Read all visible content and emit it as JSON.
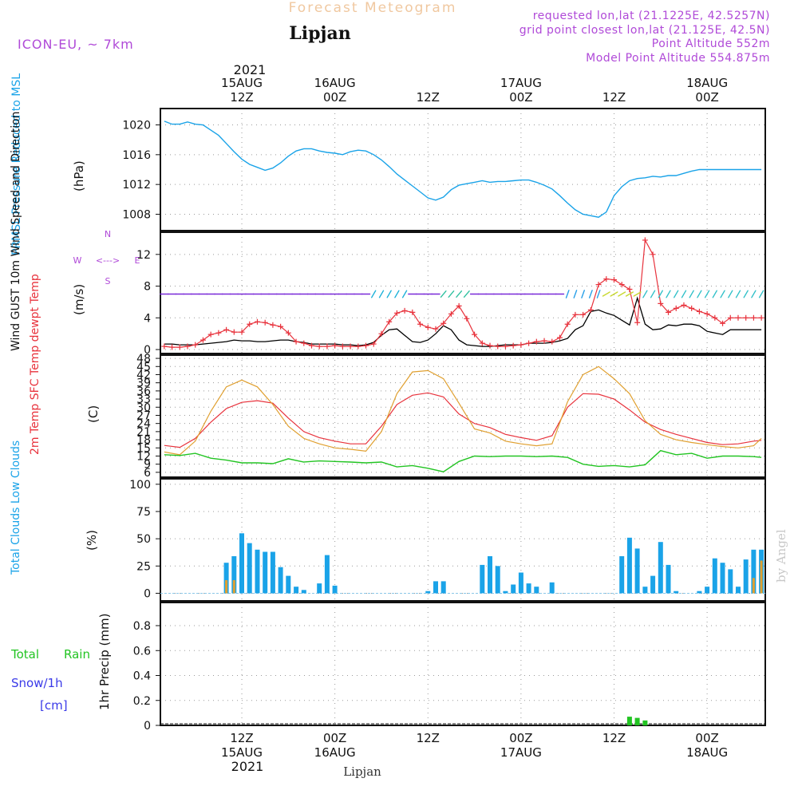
{
  "header": {
    "product": "Forecast Meteogram",
    "station": "Lipjan",
    "model": "ICON-EU, ~ 7km",
    "requested": "requested lon,lat (21.1225E, 42.5257N)",
    "gridpoint": "grid point closest lon,lat (21.125E, 42.5N)",
    "point_alt": "Point Altitude 552m",
    "model_alt": "Model Point Altitude 554.875m",
    "watermark": "by Angel",
    "footer_station": "Lipjan"
  },
  "time_axis": {
    "year": "2021",
    "ticks": [
      {
        "hour": 12,
        "line1": "",
        "line2": "15AUG",
        "line3": "12Z"
      },
      {
        "hour": 24,
        "line1": "",
        "line2": "16AUG",
        "line3": "00Z"
      },
      {
        "hour": 36,
        "line1": "",
        "line2": "",
        "line3": "12Z"
      },
      {
        "hour": 48,
        "line1": "",
        "line2": "17AUG",
        "line3": "00Z"
      },
      {
        "hour": 60,
        "line1": "",
        "line2": "",
        "line3": "12Z"
      },
      {
        "hour": 72,
        "line1": "",
        "line2": "18AUG",
        "line3": "00Z"
      }
    ],
    "bottom_ticks": [
      {
        "hour": 12,
        "hh": "12Z",
        "day": "15AUG"
      },
      {
        "hour": 24,
        "hh": "00Z",
        "day": "16AUG"
      },
      {
        "hour": 36,
        "hh": "12Z",
        "day": ""
      },
      {
        "hour": 48,
        "hh": "00Z",
        "day": "17AUG"
      },
      {
        "hour": 60,
        "hh": "12Z",
        "day": ""
      },
      {
        "hour": 72,
        "hh": "00Z",
        "day": "18AUG"
      }
    ],
    "range": [
      1.5,
      79.5
    ]
  },
  "colors": {
    "prmsl": "#1aa3e8",
    "gust": "#e8323c",
    "wind": "#000000",
    "t2m": "#e8323c",
    "tsfc": "#e0a030",
    "td": "#22c422",
    "total_cloud": "#1aa3e8",
    "low_cloud": "#e0a030",
    "rain": "#22c422",
    "snow": "#3a3ae8",
    "purple": "#b04ad8",
    "title_faint": "#f0c8a0"
  },
  "chart_data": [
    {
      "type": "line",
      "panel": "pressure",
      "ylabel": "PRMSL Pressure Reduced to MSL",
      "unit": "(hPa)",
      "yticks": [
        1008,
        1012,
        1016,
        1020
      ],
      "ylim": [
        1005.8,
        1022.2
      ],
      "series": [
        {
          "name": "PRMSL",
          "x": [
            2,
            3,
            4,
            5,
            6,
            7,
            8,
            9,
            10,
            11,
            12,
            13,
            14,
            15,
            16,
            17,
            18,
            19,
            20,
            21,
            22,
            23,
            24,
            25,
            26,
            27,
            28,
            29,
            30,
            31,
            32,
            33,
            34,
            35,
            36,
            37,
            38,
            39,
            40,
            41,
            42,
            43,
            44,
            45,
            46,
            47,
            48,
            49,
            50,
            51,
            52,
            53,
            54,
            55,
            56,
            57,
            58,
            59,
            60,
            61,
            62,
            63,
            64,
            65,
            66,
            67,
            68,
            69,
            70,
            71,
            72,
            73,
            74,
            75,
            76,
            77,
            78,
            79
          ],
          "values": [
            1020.5,
            1020.1,
            1020.1,
            1020.4,
            1020.1,
            1020.0,
            1019.3,
            1018.6,
            1017.5,
            1016.4,
            1015.4,
            1014.7,
            1014.3,
            1013.9,
            1014.2,
            1014.9,
            1015.8,
            1016.5,
            1016.8,
            1016.8,
            1016.5,
            1016.3,
            1016.2,
            1016.0,
            1016.4,
            1016.6,
            1016.5,
            1016.0,
            1015.3,
            1014.4,
            1013.4,
            1012.6,
            1011.8,
            1011.0,
            1010.2,
            1009.9,
            1010.3,
            1011.3,
            1011.9,
            1012.1,
            1012.3,
            1012.5,
            1012.3,
            1012.4,
            1012.4,
            1012.5,
            1012.6,
            1012.6,
            1012.3,
            1011.9,
            1011.4,
            1010.5,
            1009.5,
            1008.6,
            1008.0,
            1007.8,
            1007.6,
            1008.3,
            1010.5,
            1011.7,
            1012.5,
            1012.8,
            1012.9,
            1013.1,
            1013.0,
            1013.2,
            1013.2,
            1013.5,
            1013.8,
            1014.0,
            1014.0,
            1014.0,
            1014.0,
            1014.0,
            1014.0,
            1014.0,
            1014.0,
            1014.0
          ]
        }
      ]
    },
    {
      "type": "line",
      "panel": "wind",
      "ylabel": "Wind GUST 10m Wind Speed and Direction",
      "unit": "(m/s)",
      "yticks": [
        0,
        4,
        8,
        12
      ],
      "ylim": [
        -0.5,
        14.8
      ],
      "compass": {
        "n": "N",
        "s": "S",
        "w": "W",
        "e": "E",
        "cross": "<--->"
      },
      "series": [
        {
          "name": "Wind GUST",
          "x": [
            2,
            3,
            4,
            5,
            6,
            7,
            8,
            9,
            10,
            11,
            12,
            13,
            14,
            15,
            16,
            17,
            18,
            19,
            20,
            21,
            22,
            23,
            24,
            25,
            26,
            27,
            28,
            29,
            30,
            31,
            32,
            33,
            34,
            35,
            36,
            37,
            38,
            39,
            40,
            41,
            42,
            43,
            44,
            45,
            46,
            47,
            48,
            49,
            50,
            51,
            52,
            53,
            54,
            55,
            56,
            57,
            58,
            59,
            60,
            61,
            62,
            63,
            64,
            65,
            66,
            67,
            68,
            69,
            70,
            71,
            72,
            73,
            74,
            75,
            76,
            77,
            78,
            79
          ],
          "values": [
            0.4,
            0.3,
            0.3,
            0.4,
            0.6,
            1.2,
            1.9,
            2.1,
            2.5,
            2.2,
            2.2,
            3.2,
            3.5,
            3.4,
            3.1,
            2.9,
            2.1,
            1.0,
            0.8,
            0.5,
            0.4,
            0.4,
            0.5,
            0.4,
            0.4,
            0.4,
            0.5,
            0.7,
            2.0,
            3.5,
            4.6,
            4.9,
            4.7,
            3.2,
            2.8,
            2.6,
            3.3,
            4.5,
            5.5,
            3.9,
            1.9,
            0.8,
            0.5,
            0.4,
            0.4,
            0.5,
            0.6,
            0.8,
            1.0,
            1.1,
            1.0,
            1.5,
            3.2,
            4.4,
            4.4,
            5.0,
            8.2,
            8.9,
            8.8,
            8.2,
            7.6,
            3.4,
            13.8,
            12.0,
            5.8,
            4.7,
            5.2,
            5.6,
            5.2,
            4.8,
            4.5,
            4.0,
            3.3,
            4.0,
            4.0,
            4.0,
            4.0,
            4.0
          ]
        },
        {
          "name": "10m Wind",
          "x": [
            2,
            3,
            4,
            5,
            6,
            7,
            8,
            9,
            10,
            11,
            12,
            13,
            14,
            15,
            16,
            17,
            18,
            19,
            20,
            21,
            22,
            23,
            24,
            25,
            26,
            27,
            28,
            29,
            30,
            31,
            32,
            33,
            34,
            35,
            36,
            37,
            38,
            39,
            40,
            41,
            42,
            43,
            44,
            45,
            46,
            47,
            48,
            49,
            50,
            51,
            52,
            53,
            54,
            55,
            56,
            57,
            58,
            59,
            60,
            61,
            62,
            63,
            64,
            65,
            66,
            67,
            68,
            69,
            70,
            71,
            72,
            73,
            74,
            75,
            76,
            77,
            78,
            79
          ],
          "values": [
            0.7,
            0.7,
            0.6,
            0.6,
            0.6,
            0.7,
            0.8,
            0.9,
            1.0,
            1.2,
            1.1,
            1.1,
            1.0,
            1.0,
            1.1,
            1.2,
            1.2,
            1.0,
            0.9,
            0.7,
            0.7,
            0.7,
            0.7,
            0.6,
            0.6,
            0.5,
            0.6,
            0.9,
            1.8,
            2.5,
            2.6,
            1.8,
            1.0,
            0.9,
            1.2,
            2.0,
            3.0,
            2.5,
            1.2,
            0.6,
            0.5,
            0.4,
            0.4,
            0.5,
            0.6,
            0.6,
            0.6,
            0.8,
            0.8,
            0.8,
            0.9,
            1.1,
            1.4,
            2.5,
            3.0,
            4.8,
            5.0,
            4.6,
            4.3,
            3.7,
            3.1,
            6.5,
            3.2,
            2.5,
            2.6,
            3.1,
            3.0,
            3.2,
            3.2,
            3.0,
            2.3,
            2.1,
            1.9,
            2.5,
            2.5,
            2.5,
            2.5,
            2.5
          ]
        }
      ]
    },
    {
      "type": "line",
      "panel": "temperature",
      "ylabel": "2m Temp SFC Temp dewpt Temp",
      "unit": "(C)",
      "yticks": [
        6,
        9,
        12,
        15,
        18,
        21,
        24,
        27,
        30,
        33,
        36,
        39,
        42,
        45,
        48
      ],
      "ylim": [
        4.2,
        49.2
      ],
      "series": [
        {
          "name": "2m Temp",
          "x": [
            2,
            4,
            6,
            8,
            10,
            12,
            14,
            16,
            18,
            20,
            22,
            24,
            26,
            28,
            30,
            32,
            34,
            36,
            38,
            40,
            42,
            44,
            46,
            48,
            50,
            52,
            54,
            56,
            58,
            60,
            62,
            64,
            66,
            68,
            70,
            72,
            74,
            76,
            78,
            79
          ],
          "values": [
            15.9,
            15.2,
            18.5,
            24.5,
            29.5,
            31.8,
            32.4,
            31.5,
            26.0,
            21.0,
            18.8,
            17.5,
            16.5,
            16.5,
            23.0,
            31.0,
            34.4,
            35.3,
            33.8,
            27.5,
            24.0,
            22.5,
            20.0,
            18.8,
            17.8,
            19.5,
            30.0,
            35.0,
            34.8,
            33.0,
            29.0,
            24.5,
            21.8,
            20.0,
            18.5,
            17.0,
            16.2,
            16.5,
            17.5,
            17.8
          ]
        },
        {
          "name": "SFC Temp",
          "x": [
            2,
            4,
            6,
            8,
            10,
            12,
            14,
            16,
            18,
            20,
            22,
            24,
            26,
            28,
            30,
            32,
            34,
            36,
            38,
            40,
            42,
            44,
            46,
            48,
            50,
            52,
            54,
            56,
            58,
            60,
            62,
            64,
            66,
            68,
            70,
            72,
            74,
            76,
            78,
            79
          ],
          "values": [
            13.5,
            12.5,
            17.5,
            28.5,
            37.5,
            40.0,
            37.5,
            31.0,
            23.0,
            18.5,
            16.5,
            15.0,
            14.5,
            13.8,
            21.0,
            35.0,
            43.0,
            43.5,
            40.5,
            31.5,
            22.0,
            20.5,
            17.5,
            16.5,
            15.8,
            16.5,
            32.0,
            42.0,
            45.0,
            40.5,
            35.0,
            25.0,
            20.0,
            18.0,
            17.0,
            16.2,
            15.5,
            15.0,
            15.8,
            18.5
          ]
        },
        {
          "name": "dewpt Temp",
          "x": [
            2,
            4,
            6,
            8,
            10,
            12,
            14,
            16,
            18,
            20,
            22,
            24,
            26,
            28,
            30,
            32,
            34,
            36,
            38,
            40,
            42,
            44,
            46,
            48,
            50,
            52,
            54,
            56,
            58,
            60,
            62,
            64,
            66,
            68,
            70,
            72,
            74,
            76,
            78,
            79
          ],
          "values": [
            12.5,
            12.2,
            13.0,
            11.2,
            10.5,
            9.5,
            9.5,
            9.2,
            11.0,
            9.8,
            10.2,
            10.0,
            9.8,
            9.5,
            9.8,
            8.0,
            8.5,
            7.5,
            6.2,
            10.0,
            12.0,
            11.8,
            12.0,
            12.0,
            11.8,
            12.0,
            11.5,
            9.0,
            8.2,
            8.5,
            8.0,
            8.8,
            14.0,
            12.5,
            13.0,
            11.2,
            12.0,
            12.0,
            11.8,
            11.5
          ]
        }
      ]
    },
    {
      "type": "bar",
      "panel": "clouds",
      "ylabel": "Total Clouds Low Clouds",
      "unit": "(%)",
      "yticks": [
        0,
        25,
        50,
        75,
        100
      ],
      "ylim": [
        -7,
        105
      ],
      "series": [
        {
          "name": "Total Clouds",
          "x": [
            10,
            11,
            12,
            13,
            14,
            15,
            16,
            17,
            18,
            19,
            20,
            22,
            23,
            24,
            36,
            37,
            38,
            43,
            44,
            45,
            46,
            47,
            48,
            49,
            50,
            52,
            61,
            62,
            63,
            64,
            65,
            66,
            67,
            68,
            71,
            72,
            73,
            74,
            75,
            76,
            77,
            78,
            79
          ],
          "values": [
            28,
            34,
            55,
            46,
            40,
            38,
            38,
            24,
            16,
            6,
            3,
            9,
            35,
            7,
            2,
            11,
            11,
            26,
            34,
            25,
            2,
            8,
            19,
            9,
            6,
            10,
            34,
            51,
            41,
            6,
            16,
            47,
            26,
            2,
            2,
            6,
            32,
            28,
            22,
            6,
            31,
            40,
            40
          ]
        },
        {
          "name": "Low Clouds",
          "x": [
            10,
            11,
            78,
            79
          ],
          "values": [
            12,
            12,
            14,
            30
          ]
        }
      ]
    },
    {
      "type": "bar",
      "panel": "precip",
      "ylabel": "1hr Precip (mm)",
      "labels": {
        "total": "Total",
        "rain": "Rain",
        "snow": "Snow/1h",
        "cm": "[cm]"
      },
      "yticks": [
        "0",
        "0.2",
        "0.4",
        "0.6",
        "0.8"
      ],
      "ylim": [
        0,
        1.0
      ],
      "series": [
        {
          "name": "Rain",
          "x": [
            62,
            63,
            64
          ],
          "values": [
            0.07,
            0.06,
            0.04
          ]
        }
      ]
    }
  ]
}
